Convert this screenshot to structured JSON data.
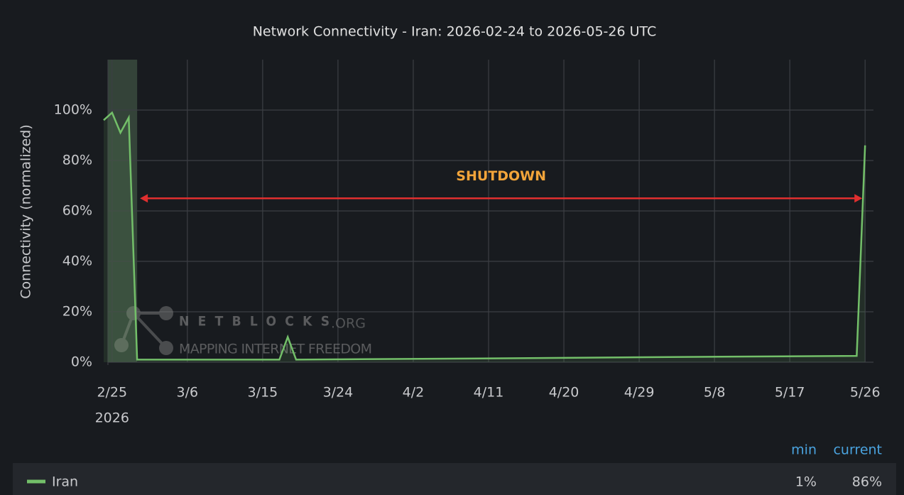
{
  "chart_data": {
    "type": "line",
    "title": "Network Connectivity - Iran: 2026-02-24 to 2026-05-26 UTC",
    "y_label": "Connectivity (normalized)",
    "xlim": [
      "2026-02-24",
      "2026-05-27"
    ],
    "xticks": [
      {
        "value": "2026-02-25",
        "label": "2/25"
      },
      {
        "value": "2026-03-06",
        "label": "3/6"
      },
      {
        "value": "2026-03-15",
        "label": "3/15"
      },
      {
        "value": "2026-03-24",
        "label": "3/24"
      },
      {
        "value": "2026-04-02",
        "label": "4/2"
      },
      {
        "value": "2026-04-11",
        "label": "4/11"
      },
      {
        "value": "2026-04-20",
        "label": "4/20"
      },
      {
        "value": "2026-04-29",
        "label": "4/29"
      },
      {
        "value": "2026-05-08",
        "label": "5/8"
      },
      {
        "value": "2026-05-17",
        "label": "5/17"
      },
      {
        "value": "2026-05-26",
        "label": "5/26"
      }
    ],
    "x_year": "2026",
    "ylim": [
      0,
      120
    ],
    "yticks": [
      {
        "value": 0,
        "label": "0%"
      },
      {
        "value": 20,
        "label": "20%"
      },
      {
        "value": 40,
        "label": "40%"
      },
      {
        "value": 60,
        "label": "60%"
      },
      {
        "value": 80,
        "label": "80%"
      },
      {
        "value": 100,
        "label": "100%"
      }
    ],
    "grid": true,
    "shaded_region": [
      "2026-02-24",
      "2026-02-28"
    ],
    "x": [
      "2026-02-24",
      "2026-02-25",
      "2026-02-26",
      "2026-02-27",
      "2026-02-28",
      "2026-03-10",
      "2026-03-17",
      "2026-03-18",
      "2026-03-19",
      "2026-04-10",
      "2026-05-01",
      "2026-05-25",
      "2026-05-26"
    ],
    "series": [
      {
        "name": "Iran",
        "color": "#73bf69",
        "values": [
          96,
          99,
          91,
          97,
          1,
          1,
          1,
          10,
          1,
          1.5,
          2,
          2.5,
          86
        ]
      }
    ],
    "annotation": {
      "text": "SHUTDOWN",
      "x": [
        "2026-02-28",
        "2026-05-26"
      ],
      "y": 65,
      "color": "#e02f2f"
    },
    "legend_stats": {
      "headers": [
        "min",
        "current"
      ],
      "values": [
        1,
        86
      ],
      "value_labels": [
        "1%",
        "86%"
      ]
    },
    "watermark": {
      "name": "NETBLOCKS",
      "suffix": ".ORG",
      "tagline": "MAPPING INTERNET FREEDOM"
    }
  }
}
